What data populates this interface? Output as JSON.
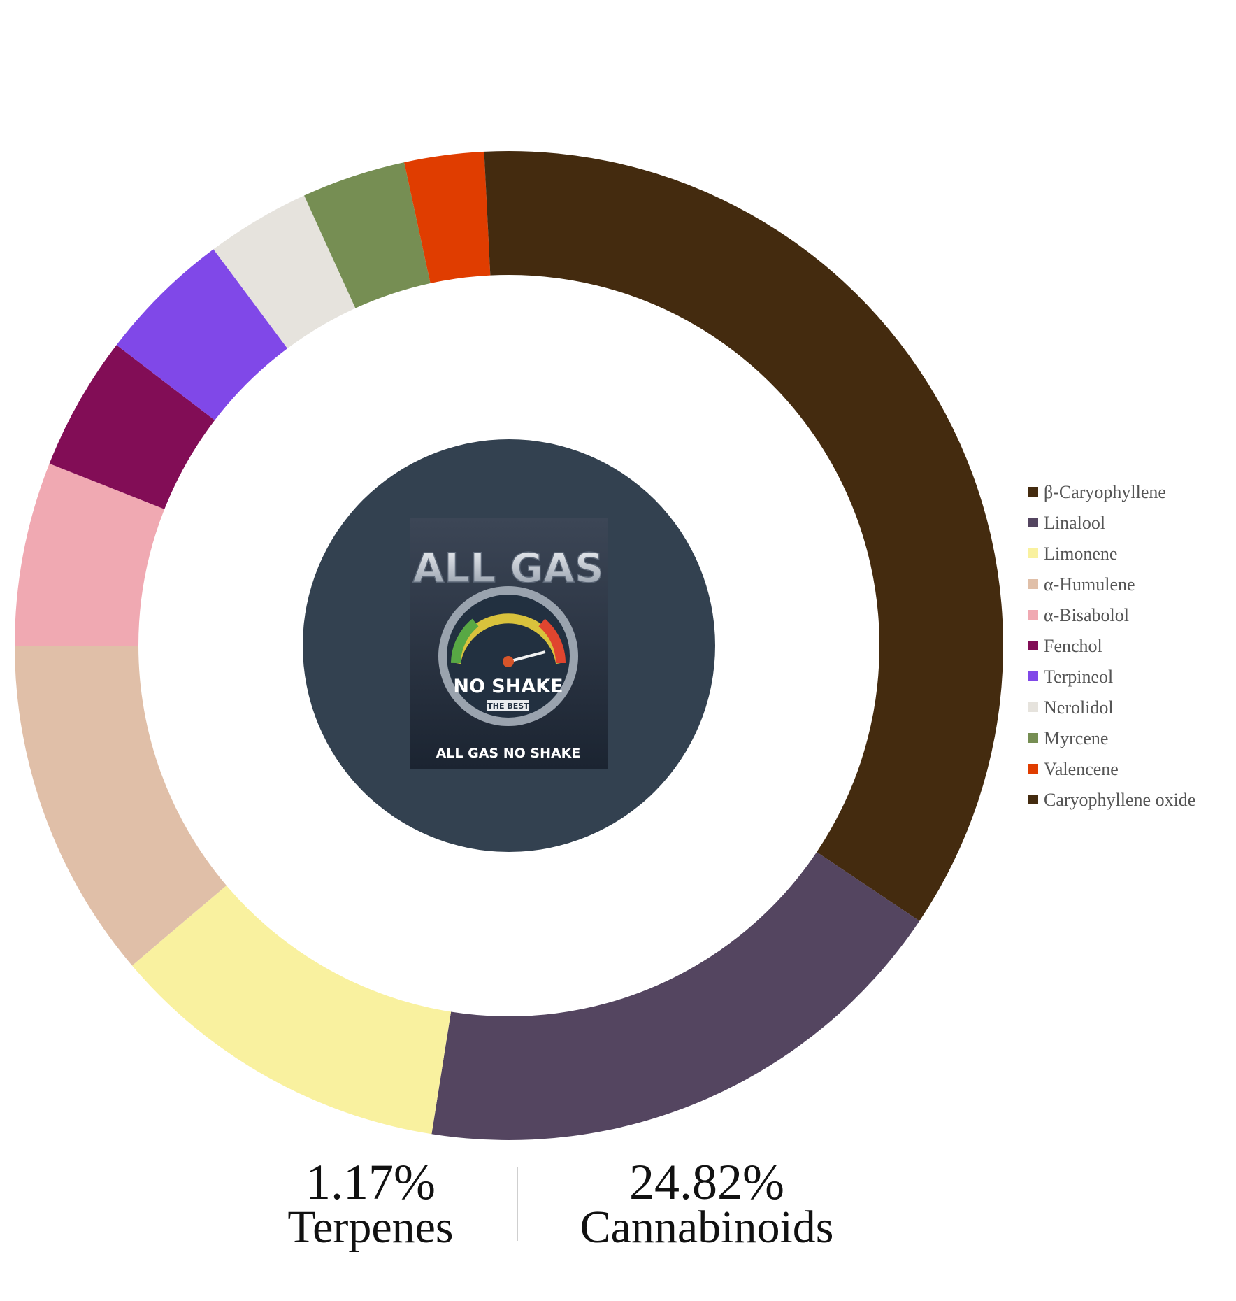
{
  "chart_data": {
    "type": "donut",
    "categories": [
      "β-Caryophyllene",
      "Linalool",
      "Limonene",
      "α-Humulene",
      "α-Bisabolol",
      "Fenchol",
      "Terpineol",
      "Nerolidol",
      "Myrcene",
      "Valencene",
      "Caryophyllene oxide"
    ],
    "values": [
      34.4,
      18.1,
      11.3,
      11.2,
      6.0,
      4.4,
      4.4,
      3.4,
      3.4,
      2.6,
      0.8
    ],
    "colors": [
      "#442b0f",
      "#544560",
      "#f9f19f",
      "#e0bfa8",
      "#f0a9b2",
      "#820d56",
      "#8048e8",
      "#e6e3dd",
      "#768e53",
      "#e03d00",
      "#442b0f"
    ],
    "legend": "right",
    "stats": [
      {
        "value": "1.17%",
        "label": "Terpenes"
      },
      {
        "value": "24.82%",
        "label": "Cannabinoids"
      }
    ]
  },
  "logo": {
    "title": "ALL GAS",
    "subtitle": "NO SHAKE",
    "badge": "THE BEST",
    "caption": "ALL GAS NO SHAKE"
  }
}
